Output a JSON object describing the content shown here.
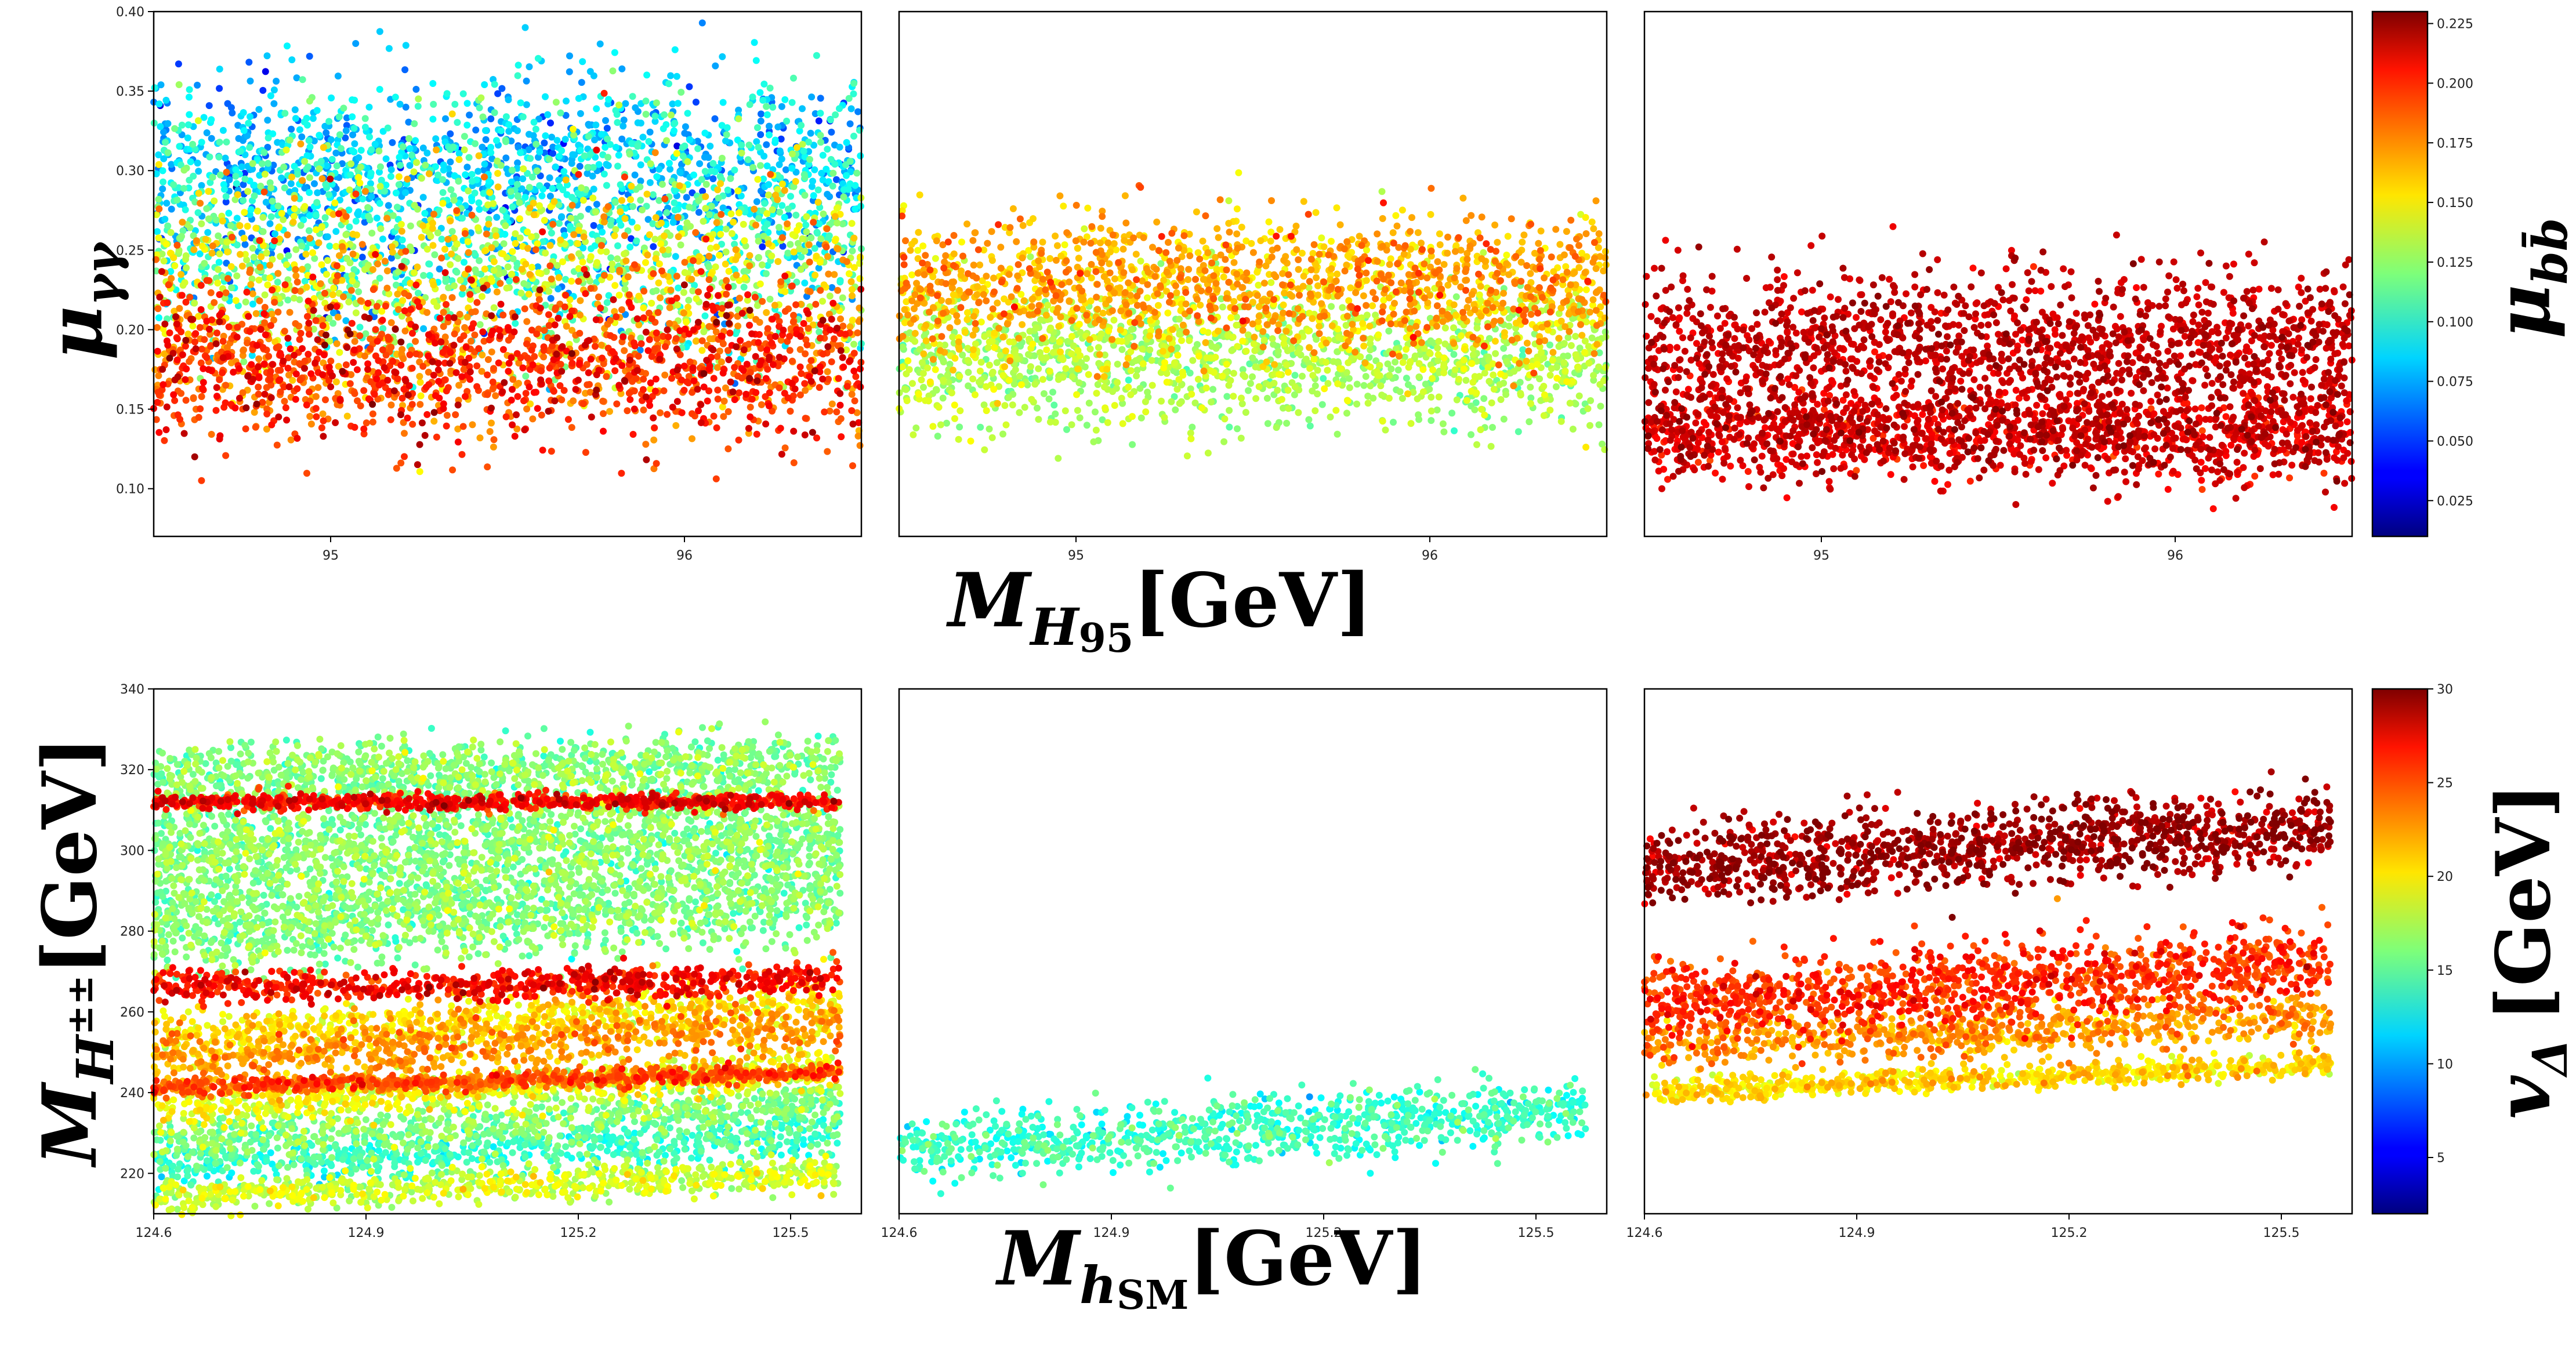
{
  "figure_labels": {
    "top_ylabel": "μγγ",
    "top_xlabel": "MH95 [GeV]",
    "bottom_ylabel": "MH±± [GeV]",
    "bottom_xlabel": "MhSM [GeV]",
    "colorbar_top_label": "μbb̄",
    "colorbar_bottom_label": "vΔ [GeV]"
  },
  "chart_data": [
    {
      "type": "scatter",
      "panel": "top-left",
      "xlim": [
        94.5,
        96.5
      ],
      "ylim": [
        0.07,
        0.4
      ],
      "xticks": [
        95,
        96
      ],
      "yticks": [
        0.1,
        0.15,
        0.2,
        0.25,
        0.3,
        0.35,
        0.4
      ],
      "ytick_labels": [
        "0.10",
        "0.15",
        "0.20",
        "0.25",
        "0.30",
        "0.35",
        "0.40"
      ],
      "xlabel": "MH95 [GeV]",
      "ylabel": "μγγ",
      "colorbar": "μbb̄",
      "clusters": [
        {
          "x_range": [
            94.5,
            96.5
          ],
          "y_center": 0.3,
          "y_spread": 0.05,
          "c_center": 0.085,
          "c_spread": 0.03
        },
        {
          "x_range": [
            94.5,
            96.5
          ],
          "y_center": 0.24,
          "y_spread": 0.05,
          "c_center": 0.13,
          "c_spread": 0.05
        },
        {
          "x_range": [
            94.5,
            96.5
          ],
          "y_center": 0.18,
          "y_spread": 0.04,
          "c_center": 0.19,
          "c_spread": 0.025
        }
      ]
    },
    {
      "type": "scatter",
      "panel": "top-middle",
      "xlim": [
        94.5,
        96.5
      ],
      "ylim": [
        0.07,
        0.4
      ],
      "xticks": [
        95,
        96
      ],
      "xlabel": "MH95 [GeV]",
      "ylabel": "μγγ",
      "colorbar": "μbb̄",
      "clusters": [
        {
          "x_range": [
            94.5,
            96.5
          ],
          "y_center": 0.23,
          "y_spread": 0.035,
          "c_center": 0.165,
          "c_spread": 0.02
        },
        {
          "x_range": [
            94.5,
            96.5
          ],
          "y_center": 0.18,
          "y_spread": 0.035,
          "c_center": 0.13,
          "c_spread": 0.015
        }
      ]
    },
    {
      "type": "scatter",
      "panel": "top-right",
      "xlim": [
        94.5,
        96.5
      ],
      "ylim": [
        0.07,
        0.4
      ],
      "xticks": [
        95,
        96
      ],
      "xlabel": "MH95 [GeV]",
      "ylabel": "μγγ",
      "colorbar": "μbb̄",
      "clusters": [
        {
          "x_range": [
            94.5,
            96.5
          ],
          "y_center": 0.135,
          "y_spread": 0.025,
          "c_center": 0.21,
          "c_spread": 0.015
        },
        {
          "x_range": [
            94.5,
            96.5
          ],
          "y_center": 0.19,
          "y_spread": 0.04,
          "c_center": 0.215,
          "c_spread": 0.01
        }
      ]
    },
    {
      "type": "scatter",
      "panel": "bottom-left",
      "xlim": [
        124.6,
        125.6
      ],
      "ylim": [
        210,
        340
      ],
      "xticks": [
        124.6,
        124.9,
        125.2,
        125.5
      ],
      "xtick_labels": [
        "124.6",
        "124.9",
        "125.2",
        "125.5"
      ],
      "yticks": [
        220,
        240,
        260,
        280,
        300,
        320,
        340
      ],
      "xlabel": "MhSM [GeV]",
      "ylabel": "MH±± [GeV]",
      "colorbar": "vΔ [GeV]",
      "bands": [
        {
          "y_start": 214,
          "y_end": 220,
          "thickness": 2,
          "c": 18
        },
        {
          "y_start": 222,
          "y_end": 230,
          "thickness": 3,
          "c": 14
        },
        {
          "y_start": 228,
          "y_end": 238,
          "thickness": 3,
          "c": 16
        },
        {
          "y_start": 236,
          "y_end": 246,
          "thickness": 2.5,
          "c": 19
        },
        {
          "y_start": 241,
          "y_end": 245,
          "thickness": 1,
          "c": 24
        },
        {
          "y_start": 248,
          "y_end": 256,
          "thickness": 3,
          "c": 22
        },
        {
          "y_start": 254,
          "y_end": 262,
          "thickness": 3,
          "c": 20
        },
        {
          "y_start": 266,
          "y_end": 268,
          "thickness": 2,
          "c": 26
        },
        {
          "y_start": 312,
          "y_end": 312,
          "thickness": 1,
          "c": 26
        },
        {
          "y_start": 280,
          "y_end": 290,
          "thickness": 6,
          "c": 16
        },
        {
          "y_start": 300,
          "y_end": 305,
          "thickness": 8,
          "c": 16
        },
        {
          "y_start": 318,
          "y_end": 322,
          "thickness": 4,
          "c": 16
        }
      ]
    },
    {
      "type": "scatter",
      "panel": "bottom-middle",
      "xlim": [
        124.6,
        125.6
      ],
      "ylim": [
        210,
        340
      ],
      "xticks": [
        124.6,
        124.9,
        125.2,
        125.5
      ],
      "xtick_labels": [
        "124.6",
        "124.9",
        "125.2",
        "125.5"
      ],
      "xlabel": "MhSM [GeV]",
      "ylabel": "MH±± [GeV]",
      "colorbar": "vΔ [GeV]",
      "bands": [
        {
          "y_start": 226,
          "y_end": 236,
          "thickness": 4,
          "c": 14
        }
      ]
    },
    {
      "type": "scatter",
      "panel": "bottom-right",
      "xlim": [
        124.6,
        125.6
      ],
      "ylim": [
        210,
        340
      ],
      "xticks": [
        124.6,
        124.9,
        125.2,
        125.5
      ],
      "xtick_labels": [
        "124.6",
        "124.9",
        "125.2",
        "125.5"
      ],
      "xlabel": "MhSM [GeV]",
      "ylabel": "MH±± [GeV]",
      "colorbar": "vΔ [GeV]",
      "bands": [
        {
          "y_start": 296,
          "y_end": 306,
          "thickness": 5,
          "c": 29
        },
        {
          "y_start": 262,
          "y_end": 272,
          "thickness": 5,
          "c": 25
        },
        {
          "y_start": 252,
          "y_end": 258,
          "thickness": 3,
          "c": 22
        },
        {
          "y_start": 240,
          "y_end": 247,
          "thickness": 1.5,
          "c": 20
        }
      ]
    }
  ],
  "colorbars": [
    {
      "name": "μbb̄",
      "range": [
        0.01,
        0.23
      ],
      "ticks": [
        0.025,
        0.05,
        0.075,
        0.1,
        0.125,
        0.15,
        0.175,
        0.2,
        0.225
      ],
      "tick_labels": [
        "0.025",
        "0.050",
        "0.075",
        "0.100",
        "0.125",
        "0.150",
        "0.175",
        "0.200",
        "0.225"
      ]
    },
    {
      "name": "vΔ [GeV]",
      "range": [
        2,
        30
      ],
      "ticks": [
        5,
        10,
        15,
        20,
        25,
        30
      ],
      "tick_labels": [
        "5",
        "10",
        "15",
        "20",
        "25",
        "30"
      ]
    }
  ],
  "colormap": "jet"
}
